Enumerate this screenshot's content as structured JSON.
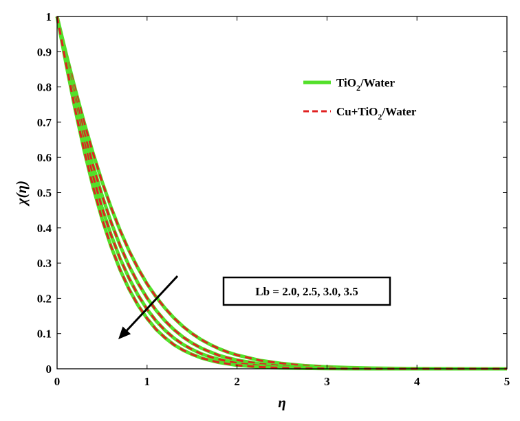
{
  "chart_data": {
    "type": "line",
    "xlabel": "η",
    "ylabel": "χ(η)",
    "xlim": [
      0,
      5
    ],
    "ylim": [
      0,
      1
    ],
    "xticks": [
      "0",
      "1",
      "2",
      "3",
      "4",
      "5"
    ],
    "yticks": [
      "0",
      "0.1",
      "0.2",
      "0.3",
      "0.4",
      "0.5",
      "0.6",
      "0.7",
      "0.8",
      "0.9",
      "1"
    ],
    "grid": false,
    "legend_position": "top-right",
    "legend": [
      {
        "label_main": "TiO",
        "label_sub": "2",
        "label_rest": "/Water",
        "color": "#53e02a",
        "style": "solid"
      },
      {
        "label_main": "Cu+TiO",
        "label_sub": "2",
        "label_rest": "/Water",
        "color": "#e02020",
        "style": "dashed"
      }
    ],
    "annotation": {
      "text": "Lb = 2.0, 2.5, 3.0, 3.5",
      "arrow": "decreasing"
    },
    "x": [
      0,
      0.1,
      0.2,
      0.3,
      0.4,
      0.5,
      0.6,
      0.7,
      0.8,
      0.9,
      1.0,
      1.1,
      1.2,
      1.3,
      1.4,
      1.5,
      1.6,
      1.7,
      1.8,
      1.9,
      2.0,
      2.25,
      2.5,
      2.75,
      3.0,
      3.25,
      3.5,
      3.75,
      4.0,
      4.25,
      4.5,
      4.75,
      5.0
    ],
    "series": [
      {
        "param": "Lb = 2.0",
        "values": [
          1.0,
          0.895,
          0.795,
          0.7,
          0.612,
          0.531,
          0.458,
          0.393,
          0.335,
          0.285,
          0.241,
          0.204,
          0.172,
          0.144,
          0.12,
          0.1,
          0.083,
          0.069,
          0.057,
          0.047,
          0.039,
          0.024,
          0.015,
          0.009,
          0.0055,
          0.0033,
          0.002,
          0.0012,
          0.0007,
          0.0004,
          0.0002,
          0.0001,
          0.0
        ]
      },
      {
        "param": "Lb = 2.5",
        "values": [
          1.0,
          0.885,
          0.775,
          0.672,
          0.577,
          0.492,
          0.416,
          0.35,
          0.292,
          0.243,
          0.201,
          0.166,
          0.136,
          0.111,
          0.09,
          0.073,
          0.059,
          0.048,
          0.038,
          0.031,
          0.025,
          0.014,
          0.008,
          0.0045,
          0.0025,
          0.0014,
          0.0008,
          0.0004,
          0.0002,
          0.0001,
          0.0,
          0.0,
          0.0
        ]
      },
      {
        "param": "Lb = 3.0",
        "values": [
          1.0,
          0.875,
          0.755,
          0.645,
          0.546,
          0.457,
          0.38,
          0.313,
          0.257,
          0.209,
          0.169,
          0.136,
          0.109,
          0.087,
          0.069,
          0.055,
          0.043,
          0.034,
          0.027,
          0.021,
          0.016,
          0.0085,
          0.0045,
          0.0024,
          0.0012,
          0.0006,
          0.0003,
          0.0001,
          0.0,
          0.0,
          0.0,
          0.0,
          0.0
        ]
      },
      {
        "param": "Lb = 3.5",
        "values": [
          1.0,
          0.865,
          0.737,
          0.62,
          0.516,
          0.425,
          0.347,
          0.281,
          0.226,
          0.18,
          0.143,
          0.112,
          0.088,
          0.068,
          0.053,
          0.041,
          0.031,
          0.024,
          0.018,
          0.014,
          0.01,
          0.005,
          0.0025,
          0.0012,
          0.0006,
          0.0003,
          0.0001,
          0.0,
          0.0,
          0.0,
          0.0,
          0.0,
          0.0
        ]
      }
    ]
  }
}
